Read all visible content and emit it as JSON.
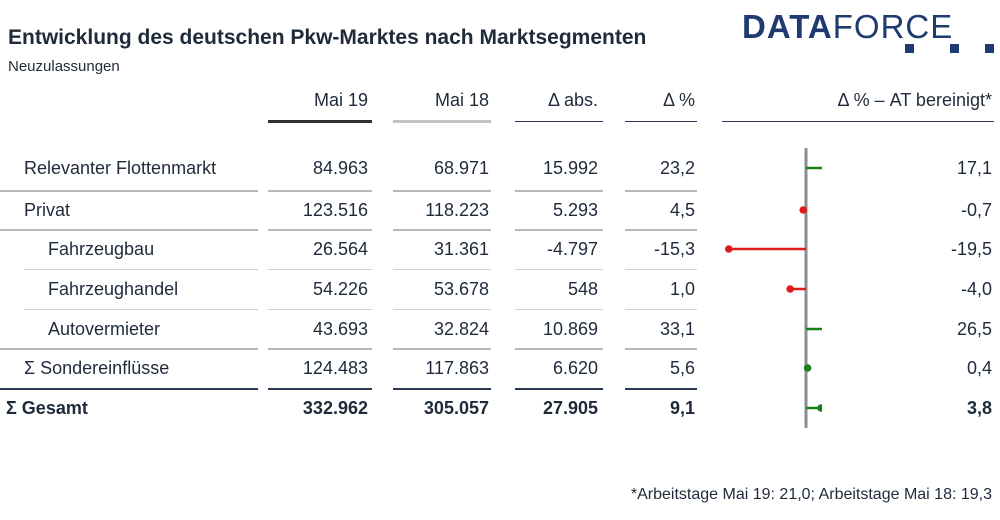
{
  "title": "Entwicklung des deutschen Pkw-Marktes nach Marktsegmenten",
  "subtitle": "Neuzulassungen",
  "logo": {
    "bold": "DATA",
    "light": "FORCE"
  },
  "columns": [
    "Mai 19",
    "Mai 18",
    "Δ abs.",
    "Δ %",
    "Δ % – AT bereinigt*"
  ],
  "footnote": "*Arbeitstage Mai 19: 21,0; Arbeitstage Mai 18: 19,3",
  "colors": {
    "positive": "#1a7f1a",
    "negative": "#e01b1b",
    "axis": "#8c8c8c",
    "brand": "#1f3a6e"
  },
  "chart_data": {
    "type": "table",
    "rows": [
      {
        "label": "Relevanter Flottenmarkt",
        "mai19": "84.963",
        "mai18": "68.971",
        "abs": "15.992",
        "pct": "23,2",
        "at": "17,1",
        "at_value": 17.1
      },
      {
        "label": "Privat",
        "mai19": "123.516",
        "mai18": "118.223",
        "abs": "5.293",
        "pct": "4,5",
        "at": "-0,7",
        "at_value": -0.7
      },
      {
        "label": "Fahrzeugbau",
        "mai19": "26.564",
        "mai18": "31.361",
        "abs": "-4.797",
        "pct": "-15,3",
        "at": "-19,5",
        "at_value": -19.5
      },
      {
        "label": "Fahrzeughandel",
        "mai19": "54.226",
        "mai18": "53.678",
        "abs": "548",
        "pct": "1,0",
        "at": "-4,0",
        "at_value": -4.0
      },
      {
        "label": "Autovermieter",
        "mai19": "43.693",
        "mai18": "32.824",
        "abs": "10.869",
        "pct": "33,1",
        "at": "26,5",
        "at_value": 26.5
      },
      {
        "label": "Σ Sondereinflüsse",
        "mai19": "124.483",
        "mai18": "117.863",
        "abs": "6.620",
        "pct": "5,6",
        "at": "0,4",
        "at_value": 0.4
      },
      {
        "label": "Σ Gesamt",
        "mai19": "332.962",
        "mai18": "305.057",
        "abs": "27.905",
        "pct": "9,1",
        "at": "3,8",
        "at_value": 3.8
      }
    ],
    "xlim": [
      -22,
      30
    ]
  }
}
